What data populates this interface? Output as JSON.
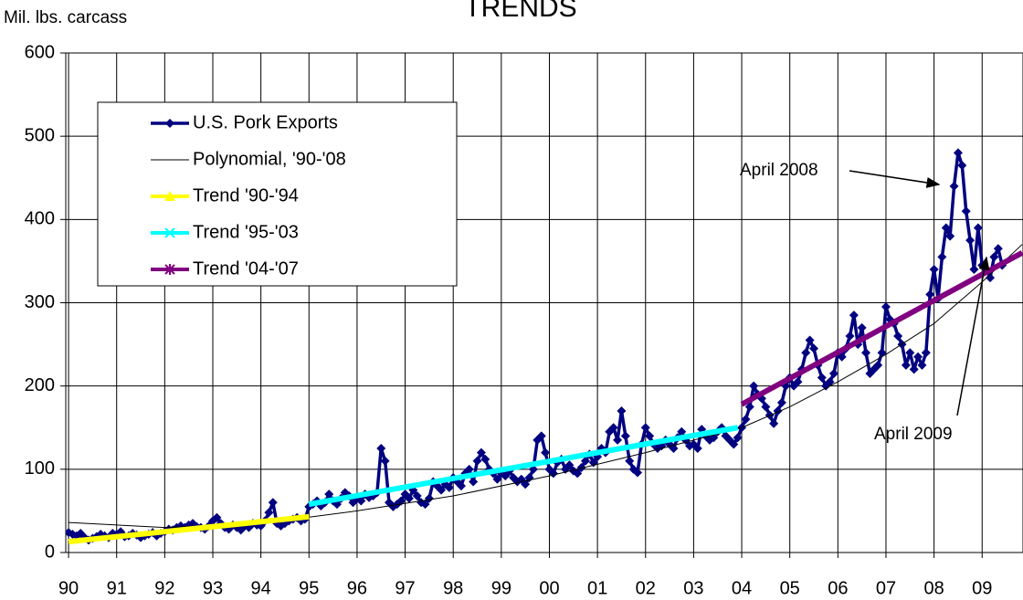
{
  "chart_data": {
    "type": "line",
    "title": "TRENDS",
    "y_label": "Mil. lbs. carcass",
    "xlim": [
      -0.7,
      238.2
    ],
    "ylim": [
      0,
      600
    ],
    "xticks": [
      {
        "value": 0,
        "label": "90"
      },
      {
        "value": 12,
        "label": "91"
      },
      {
        "value": 24,
        "label": "92"
      },
      {
        "value": 36,
        "label": "93"
      },
      {
        "value": 48,
        "label": "94"
      },
      {
        "value": 60,
        "label": "95"
      },
      {
        "value": 72,
        "label": "96"
      },
      {
        "value": 84,
        "label": "97"
      },
      {
        "value": 96,
        "label": "98"
      },
      {
        "value": 108,
        "label": "99"
      },
      {
        "value": 120,
        "label": "00"
      },
      {
        "value": 132,
        "label": "01"
      },
      {
        "value": 144,
        "label": "02"
      },
      {
        "value": 156,
        "label": "03"
      },
      {
        "value": 168,
        "label": "04"
      },
      {
        "value": 180,
        "label": "05"
      },
      {
        "value": 192,
        "label": "06"
      },
      {
        "value": 204,
        "label": "07"
      },
      {
        "value": 216,
        "label": "08"
      },
      {
        "value": 228,
        "label": "09"
      }
    ],
    "yticks": [
      0,
      100,
      200,
      300,
      400,
      500,
      600
    ],
    "grid": true,
    "legend": "upper left",
    "annotations": [
      "April 2008",
      "April 2009"
    ],
    "series": [
      {
        "name": "U.S. Pork Exports",
        "color": "#000080",
        "x": [
          0,
          1,
          2,
          3,
          4,
          5,
          6,
          7,
          8,
          9,
          10,
          11,
          12,
          13,
          14,
          15,
          16,
          17,
          18,
          19,
          20,
          21,
          22,
          23,
          24,
          25,
          26,
          27,
          28,
          29,
          30,
          31,
          32,
          33,
          34,
          35,
          36,
          37,
          38,
          39,
          40,
          41,
          42,
          43,
          44,
          45,
          46,
          47,
          48,
          49,
          50,
          51,
          52,
          53,
          54,
          55,
          56,
          57,
          58,
          59,
          60,
          61,
          62,
          63,
          64,
          65,
          66,
          67,
          68,
          69,
          70,
          71,
          72,
          73,
          74,
          75,
          76,
          77,
          78,
          79,
          80,
          81,
          82,
          83,
          84,
          85,
          86,
          87,
          88,
          89,
          90,
          91,
          92,
          93,
          94,
          95,
          96,
          97,
          98,
          99,
          100,
          101,
          102,
          103,
          104,
          105,
          106,
          107,
          108,
          109,
          110,
          111,
          112,
          113,
          114,
          115,
          116,
          117,
          118,
          119,
          120,
          121,
          122,
          123,
          124,
          125,
          126,
          127,
          128,
          129,
          130,
          131,
          132,
          133,
          134,
          135,
          136,
          137,
          138,
          139,
          140,
          141,
          142,
          143,
          144,
          145,
          146,
          147,
          148,
          149,
          150,
          151,
          152,
          153,
          154,
          155,
          156,
          157,
          158,
          159,
          160,
          161,
          162,
          163,
          164,
          165,
          166,
          167,
          168,
          169,
          170,
          171,
          172,
          173,
          174,
          175,
          176,
          177,
          178,
          179,
          180,
          181,
          182,
          183,
          184,
          185,
          186,
          187,
          188,
          189,
          190,
          191,
          192,
          193,
          194,
          195,
          196,
          197,
          198,
          199,
          200,
          201,
          202,
          203,
          204,
          205,
          206,
          207,
          208,
          209,
          210,
          211,
          212,
          213,
          214,
          215,
          216,
          217,
          218,
          219,
          220,
          221,
          222,
          223,
          224,
          225,
          226,
          227,
          228,
          229,
          230,
          231,
          232,
          233
        ],
        "values": [
          24,
          22,
          20,
          23,
          18,
          15,
          17,
          19,
          22,
          20,
          18,
          23,
          22,
          25,
          19,
          20,
          23,
          21,
          18,
          20,
          22,
          24,
          20,
          23,
          25,
          28,
          27,
          30,
          32,
          30,
          33,
          35,
          31,
          30,
          28,
          32,
          38,
          42,
          35,
          30,
          28,
          33,
          30,
          27,
          32,
          30,
          35,
          33,
          32,
          38,
          48,
          60,
          35,
          32,
          35,
          38,
          40,
          42,
          38,
          40,
          55,
          58,
          62,
          56,
          60,
          70,
          62,
          58,
          65,
          72,
          68,
          60,
          65,
          62,
          70,
          66,
          68,
          72,
          125,
          110,
          60,
          55,
          58,
          62,
          70,
          65,
          75,
          68,
          60,
          58,
          65,
          85,
          80,
          75,
          82,
          78,
          90,
          85,
          80,
          95,
          100,
          85,
          110,
          120,
          112,
          100,
          95,
          88,
          95,
          92,
          98,
          90,
          85,
          88,
          82,
          90,
          100,
          135,
          140,
          120,
          100,
          95,
          108,
          112,
          100,
          105,
          98,
          95,
          102,
          110,
          118,
          108,
          115,
          125,
          120,
          145,
          150,
          135,
          170,
          140,
          110,
          100,
          96,
          130,
          150,
          140,
          130,
          125,
          128,
          135,
          130,
          125,
          138,
          145,
          135,
          128,
          130,
          125,
          148,
          140,
          135,
          138,
          145,
          150,
          140,
          135,
          130,
          138,
          150,
          160,
          175,
          200,
          190,
          185,
          175,
          165,
          155,
          170,
          180,
          200,
          210,
          200,
          205,
          220,
          240,
          255,
          245,
          225,
          210,
          200,
          205,
          215,
          240,
          235,
          245,
          260,
          285,
          250,
          270,
          240,
          215,
          220,
          225,
          240,
          295,
          280,
          275,
          260,
          250,
          225,
          240,
          220,
          235,
          225,
          240,
          310,
          340,
          305,
          355,
          390,
          380,
          440,
          480,
          465,
          410,
          375,
          340,
          390,
          345,
          340,
          330,
          355,
          365,
          345
        ]
      },
      {
        "name": "Polynomial, '90-'08",
        "color": "#000000",
        "x": [
          0,
          24,
          48,
          72,
          96,
          120,
          144,
          168,
          180,
          192,
          204,
          216,
          228,
          238
        ],
        "values": [
          36,
          30,
          35,
          50,
          68,
          92,
          120,
          150,
          175,
          205,
          238,
          275,
          325,
          370
        ]
      },
      {
        "name": "Trend '90-'94",
        "color": "#ffff00",
        "x": [
          0,
          60
        ],
        "values": [
          13,
          43
        ]
      },
      {
        "name": "Trend '95-'03",
        "color": "#00ffff",
        "x": [
          60,
          167
        ],
        "values": [
          58,
          150
        ]
      },
      {
        "name": "Trend '04-'07",
        "color": "#800080",
        "x": [
          168,
          238
        ],
        "values": [
          178,
          360
        ]
      }
    ]
  }
}
